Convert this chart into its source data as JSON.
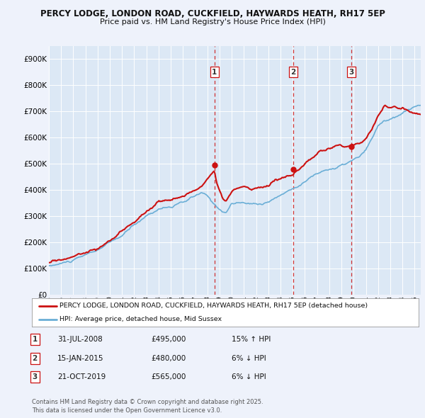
{
  "title1": "PERCY LODGE, LONDON ROAD, CUCKFIELD, HAYWARDS HEATH, RH17 5EP",
  "title2": "Price paid vs. HM Land Registry's House Price Index (HPI)",
  "background_color": "#eef2fb",
  "plot_bg_color": "#dce8f5",
  "grid_color": "#ffffff",
  "legend_label_red": "PERCY LODGE, LONDON ROAD, CUCKFIELD, HAYWARDS HEATH, RH17 5EP (detached house)",
  "legend_label_blue": "HPI: Average price, detached house, Mid Sussex",
  "footer": "Contains HM Land Registry data © Crown copyright and database right 2025.\nThis data is licensed under the Open Government Licence v3.0.",
  "sales": [
    {
      "num": 1,
      "date": "31-JUL-2008",
      "price": "£495,000",
      "change": "15% ↑ HPI",
      "x_year": 2008.58
    },
    {
      "num": 2,
      "date": "15-JAN-2015",
      "price": "£480,000",
      "change": "6% ↓ HPI",
      "x_year": 2015.04
    },
    {
      "num": 3,
      "date": "21-OCT-2019",
      "price": "£565,000",
      "change": "6% ↓ HPI",
      "x_year": 2019.8
    }
  ],
  "ylim": [
    0,
    950000
  ],
  "xlim_start": 1995.0,
  "xlim_end": 2025.5,
  "hpi_color": "#6aaed6",
  "price_color": "#cc1111",
  "vline_color": "#cc1111",
  "sale_marker_size": 5
}
